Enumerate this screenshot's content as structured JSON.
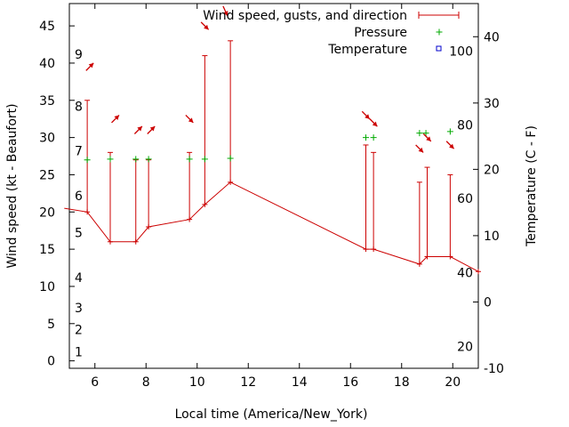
{
  "chart_data": {
    "type": "line",
    "title": "",
    "xlabel": "Local time (America/New_York)",
    "ylabel": "Wind speed (kt - Beaufort)",
    "y2label": "Temperature (C - F)",
    "xlim": [
      5,
      21
    ],
    "ylim": [
      -1,
      48
    ],
    "y2lim": [
      -10,
      45
    ],
    "x_ticks": [
      6,
      8,
      10,
      12,
      14,
      16,
      18,
      20
    ],
    "y_ticks": [
      0,
      5,
      10,
      15,
      20,
      25,
      30,
      35,
      40,
      45
    ],
    "y2_ticks": [
      -10,
      0,
      10,
      20,
      30,
      40
    ],
    "legend": {
      "position": "top-right",
      "entries": [
        "Wind speed, gusts, and direction",
        "Pressure",
        "Temperature"
      ]
    },
    "beaufort_labels": [
      {
        "label": "1",
        "wind": 1.2
      },
      {
        "label": "2",
        "wind": 4.2
      },
      {
        "label": "3",
        "wind": 7.1
      },
      {
        "label": "4",
        "wind": 11.2
      },
      {
        "label": "5",
        "wind": 17.2
      },
      {
        "label": "6",
        "wind": 22.2
      },
      {
        "label": "7",
        "wind": 28.2
      },
      {
        "label": "8",
        "wind": 34.2
      },
      {
        "label": "9",
        "wind": 41.2
      }
    ],
    "fahrenheit_labels": [
      {
        "label": "20",
        "c": -6.7
      },
      {
        "label": "40",
        "c": 4.4
      },
      {
        "label": "60",
        "c": 15.6
      },
      {
        "label": "80",
        "c": 26.7
      },
      {
        "label": "100",
        "c": 37.8
      }
    ],
    "wind": {
      "x": [
        4.8,
        5.7,
        6.6,
        7.6,
        8.1,
        9.7,
        10.3,
        11.3,
        16.6,
        16.9,
        18.7,
        19.0,
        19.9,
        21.0
      ],
      "speed": [
        20.5,
        20,
        16,
        16,
        18,
        19,
        21,
        24,
        15,
        15,
        13,
        14,
        14,
        12
      ]
    },
    "gusts": [
      {
        "x": 5.7,
        "low": 20,
        "high": 35
      },
      {
        "x": 6.6,
        "low": 16,
        "high": 28
      },
      {
        "x": 7.6,
        "low": 16,
        "high": 27
      },
      {
        "x": 8.1,
        "low": 18,
        "high": 27
      },
      {
        "x": 9.7,
        "low": 19,
        "high": 28
      },
      {
        "x": 10.3,
        "low": 21,
        "high": 41
      },
      {
        "x": 11.3,
        "low": 24,
        "high": 43
      },
      {
        "x": 16.6,
        "low": 15,
        "high": 29
      },
      {
        "x": 16.9,
        "low": 15,
        "high": 28
      },
      {
        "x": 18.7,
        "low": 13,
        "high": 24
      },
      {
        "x": 19.0,
        "low": 14,
        "high": 26
      },
      {
        "x": 19.9,
        "low": 14,
        "high": 25
      }
    ],
    "pressure": {
      "x": [
        5.7,
        6.6,
        7.6,
        8.1,
        9.7,
        10.3,
        11.3,
        16.6,
        16.9,
        18.7,
        18.95,
        19.9
      ],
      "y": [
        27,
        27.1,
        27.1,
        27.1,
        27.1,
        27.1,
        27.2,
        30,
        30,
        30.6,
        30.6,
        30.8
      ]
    },
    "direction_arrows": [
      {
        "x": 5.8,
        "y": 39.5,
        "from": "southwest"
      },
      {
        "x": 6.8,
        "y": 32.5,
        "from": "southwest"
      },
      {
        "x": 7.7,
        "y": 31,
        "from": "southwest"
      },
      {
        "x": 8.2,
        "y": 31,
        "from": "southwest"
      },
      {
        "x": 9.7,
        "y": 32.5,
        "from": "northwest"
      },
      {
        "x": 10.3,
        "y": 45,
        "from": "northwest"
      },
      {
        "x": 11.1,
        "y": 47,
        "from": "north-northwest"
      },
      {
        "x": 16.6,
        "y": 33,
        "from": "northwest"
      },
      {
        "x": 16.9,
        "y": 32,
        "from": "northwest"
      },
      {
        "x": 18.7,
        "y": 28.5,
        "from": "northwest"
      },
      {
        "x": 19.0,
        "y": 30,
        "from": "northwest"
      },
      {
        "x": 19.9,
        "y": 29,
        "from": "northwest"
      }
    ],
    "colors": {
      "wind": "#cc0000",
      "pressure": "#00aa00",
      "temperature": "#0000cc",
      "axis": "#000000"
    }
  }
}
